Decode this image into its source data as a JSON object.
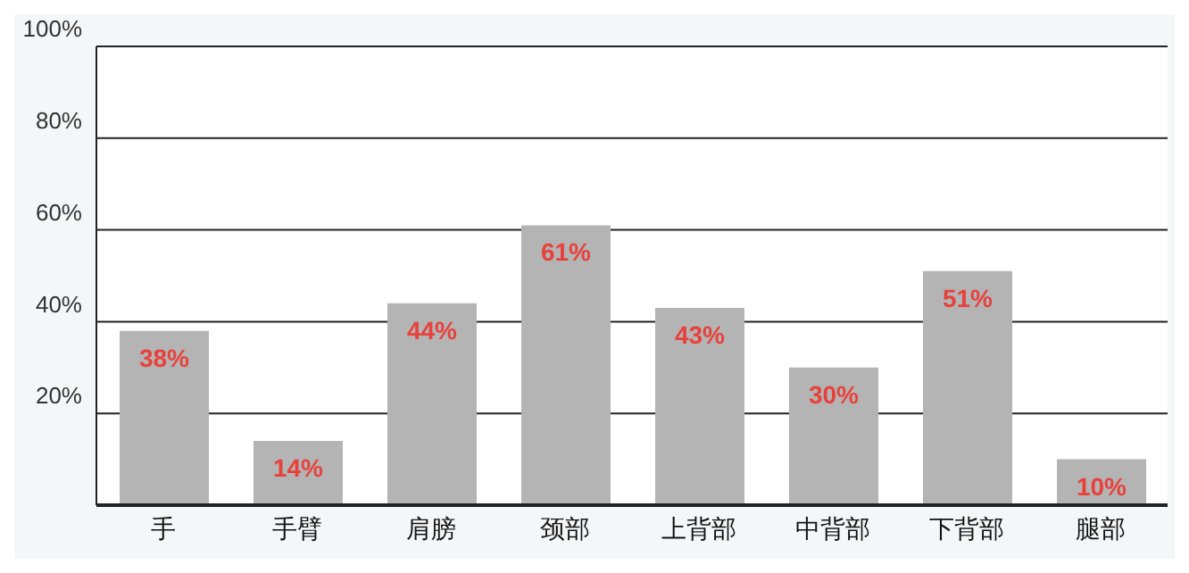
{
  "chart_data": {
    "type": "bar",
    "categories": [
      "手",
      "手臂",
      "肩膀",
      "颈部",
      "上背部",
      "中背部",
      "下背部",
      "腿部"
    ],
    "values": [
      38,
      14,
      44,
      61,
      43,
      30,
      51,
      10
    ],
    "color": "#b4b4b4",
    "ylim": [
      0,
      100
    ],
    "yticks": [
      {
        "value": 0,
        "label": null
      },
      {
        "value": 20,
        "label": "20%"
      },
      {
        "value": 40,
        "label": "40%"
      },
      {
        "value": 60,
        "label": "60%"
      },
      {
        "value": 80,
        "label": "80%"
      },
      {
        "value": 100,
        "label": "100%"
      }
    ],
    "grid": "y",
    "data_labels": true,
    "value_labels": [
      "38%",
      "14%",
      "44%",
      "61%",
      "43%",
      "30%",
      "51%",
      "10%"
    ]
  }
}
